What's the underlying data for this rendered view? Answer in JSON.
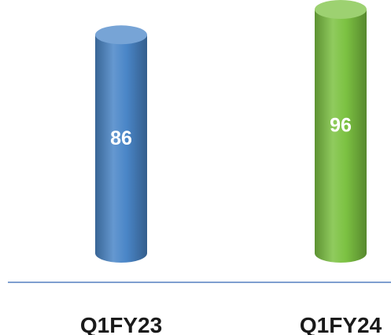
{
  "chart_data": {
    "type": "bar",
    "style": "3d-cylinder",
    "categories": [
      "Q1FY23",
      "Q1FY24"
    ],
    "values": [
      86,
      96
    ],
    "bar_colors": [
      "#4a86c8",
      "#7cc242"
    ],
    "data_label_color": "#ffffff",
    "baseline_color": "#7f9fd0",
    "title": "",
    "xlabel": "",
    "ylabel": "",
    "grid": false,
    "legend": "none"
  }
}
